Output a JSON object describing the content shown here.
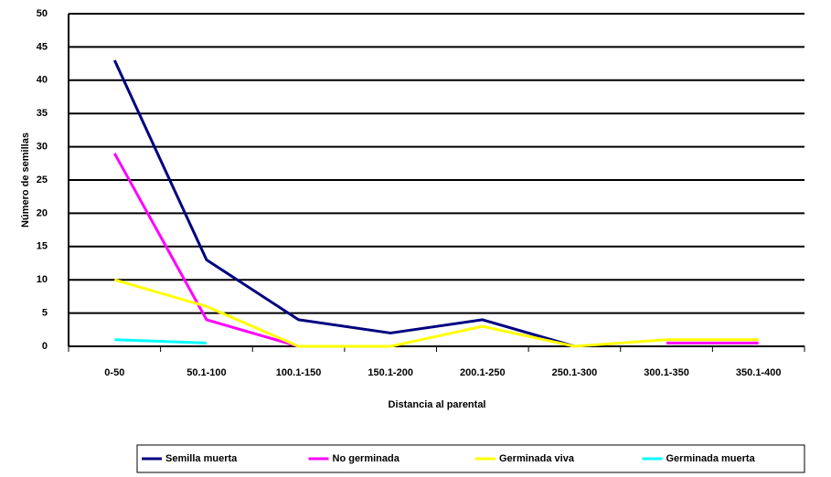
{
  "chart_data": {
    "type": "line",
    "y_label": "Número de semillas",
    "x_label": "Distancia al parental",
    "categories": [
      "0-50",
      "50.1-100",
      "100.1-150",
      "150.1-200",
      "200.1-250",
      "250.1-300",
      "300.1-350",
      "350.1-400"
    ],
    "series": [
      {
        "name": "Semilla muerta",
        "color": "#000080",
        "values": [
          43,
          13,
          4,
          2,
          4,
          0,
          null,
          null
        ]
      },
      {
        "name": "No germinada",
        "color": "#ff00ff",
        "values": [
          29,
          4,
          0,
          null,
          null,
          null,
          0.5,
          0.5
        ]
      },
      {
        "name": "Germinada viva",
        "color": "#ffff00",
        "values": [
          10,
          6,
          0,
          0,
          3,
          0,
          1,
          1
        ]
      },
      {
        "name": "Germinada muerta",
        "color": "#00ffff",
        "values": [
          1,
          0.5,
          null,
          null,
          null,
          null,
          null,
          null
        ]
      }
    ],
    "ylim": [
      0,
      50
    ],
    "yticks": [
      0,
      5,
      10,
      15,
      20,
      25,
      30,
      35,
      40,
      45,
      50
    ],
    "grid": true,
    "legend": "bottom"
  }
}
